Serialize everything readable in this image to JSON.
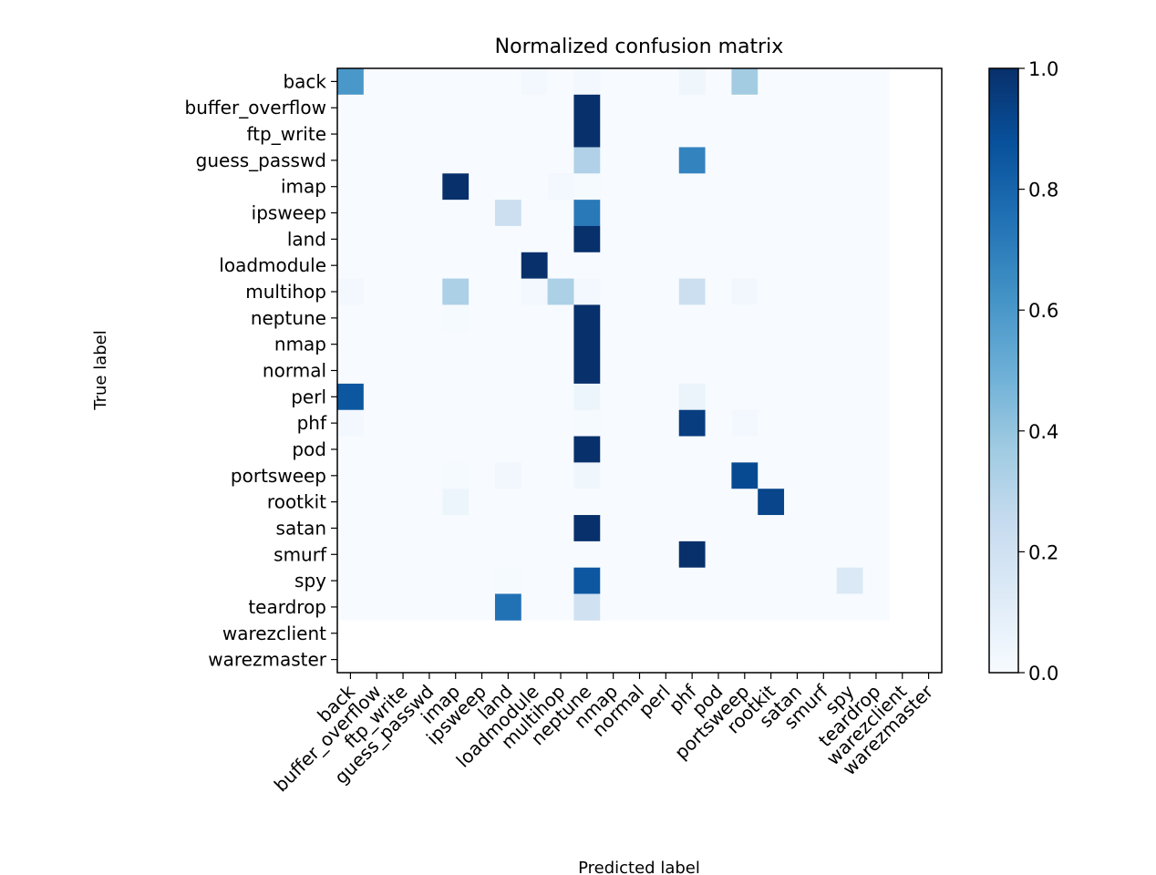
{
  "chart_data": {
    "type": "heatmap",
    "title": "Normalized confusion matrix",
    "xlabel": "Predicted label",
    "ylabel": "True label",
    "rows": [
      "back",
      "buffer_overflow",
      "ftp_write",
      "guess_passwd",
      "imap",
      "ipsweep",
      "land",
      "loadmodule",
      "multihop",
      "neptune",
      "nmap",
      "normal",
      "perl",
      "phf",
      "pod",
      "portsweep",
      "rootkit",
      "satan",
      "smurf",
      "spy",
      "teardrop",
      "warezclient",
      "warezmaster"
    ],
    "columns": [
      "back",
      "buffer_overflow",
      "ftp_write",
      "guess_passwd",
      "imap",
      "ipsweep",
      "land",
      "loadmodule",
      "multihop",
      "neptune",
      "nmap",
      "normal",
      "perl",
      "phf",
      "pod",
      "portsweep",
      "rootkit",
      "satan",
      "smurf",
      "spy",
      "teardrop",
      "warezclient",
      "warezmaster"
    ],
    "values": [
      [
        0.6,
        0,
        0,
        0,
        0,
        0,
        0,
        0.02,
        0,
        0.02,
        0,
        0,
        0,
        0.04,
        0,
        0.36,
        0,
        0,
        0,
        0,
        0,
        null,
        null
      ],
      [
        0,
        0,
        0,
        0,
        0,
        0,
        0,
        0,
        0,
        1,
        0,
        0,
        0,
        0,
        0,
        0,
        0,
        0,
        0,
        0,
        0,
        null,
        null
      ],
      [
        0,
        0,
        0,
        0,
        0,
        0,
        0,
        0,
        0,
        1,
        0,
        0,
        0,
        0,
        0,
        0,
        0,
        0,
        0,
        0,
        0,
        null,
        null
      ],
      [
        0,
        0,
        0,
        0,
        0,
        0,
        0,
        0,
        0,
        0.32,
        0,
        0,
        0,
        0.68,
        0,
        0,
        0,
        0,
        0,
        0,
        0,
        null,
        null
      ],
      [
        0,
        0,
        0,
        0,
        1,
        0,
        0,
        0,
        0.02,
        0.01,
        0,
        0,
        0,
        0,
        0,
        0,
        0,
        0,
        0,
        0,
        0,
        null,
        null
      ],
      [
        0,
        0,
        0,
        0,
        0,
        0,
        0.22,
        0,
        0,
        0.72,
        0,
        0,
        0,
        0,
        0,
        0,
        0,
        0,
        0,
        0,
        0,
        null,
        null
      ],
      [
        0,
        0,
        0,
        0,
        0,
        0,
        0,
        0,
        0,
        1,
        0,
        0,
        0,
        0,
        0,
        0,
        0,
        0,
        0,
        0,
        0,
        null,
        null
      ],
      [
        0,
        0,
        0,
        0,
        0,
        0,
        0,
        1,
        0,
        0,
        0,
        0,
        0,
        0,
        0,
        0,
        0,
        0,
        0,
        0,
        0,
        null,
        null
      ],
      [
        0.02,
        0,
        0,
        0,
        0.33,
        0,
        0,
        0.02,
        0.33,
        0.02,
        0,
        0,
        0,
        0.22,
        0,
        0.03,
        0,
        0,
        0,
        0,
        0,
        null,
        null
      ],
      [
        0,
        0,
        0,
        0,
        0.01,
        0,
        0,
        0,
        0,
        1,
        0,
        0,
        0,
        0,
        0,
        0,
        0,
        0,
        0,
        0,
        0,
        null,
        null
      ],
      [
        0,
        0,
        0,
        0,
        0,
        0,
        0,
        0,
        0,
        1,
        0,
        0,
        0,
        0,
        0,
        0,
        0,
        0,
        0,
        0,
        0,
        null,
        null
      ],
      [
        0,
        0,
        0,
        0,
        0,
        0,
        0,
        0,
        0,
        1,
        0,
        0,
        0,
        0,
        0,
        0,
        0,
        0,
        0,
        0,
        0,
        null,
        null
      ],
      [
        0.85,
        0,
        0,
        0,
        0,
        0,
        0,
        0,
        0,
        0.05,
        0,
        0,
        0,
        0.06,
        0,
        0,
        0,
        0,
        0,
        0,
        0,
        null,
        null
      ],
      [
        0.02,
        0,
        0,
        0,
        0,
        0,
        0,
        0,
        0,
        0.01,
        0,
        0,
        0,
        0.95,
        0,
        0.02,
        0,
        0,
        0,
        0,
        0,
        null,
        null
      ],
      [
        0,
        0,
        0,
        0,
        0,
        0,
        0,
        0,
        0,
        1,
        0,
        0,
        0,
        0,
        0,
        0,
        0,
        0,
        0,
        0,
        0,
        null,
        null
      ],
      [
        0,
        0,
        0,
        0,
        0.01,
        0,
        0.03,
        0,
        0,
        0.04,
        0,
        0,
        0,
        0,
        0,
        0.9,
        0,
        0,
        0,
        0,
        0,
        null,
        null
      ],
      [
        0,
        0,
        0,
        0,
        0.05,
        0,
        0,
        0,
        0,
        0,
        0,
        0,
        0,
        0,
        0,
        0,
        0.92,
        0,
        0,
        0,
        0,
        null,
        null
      ],
      [
        0,
        0,
        0,
        0,
        0,
        0,
        0,
        0,
        0,
        1,
        0,
        0,
        0,
        0,
        0,
        0,
        0,
        0,
        0,
        0,
        0,
        null,
        null
      ],
      [
        0,
        0,
        0,
        0,
        0,
        0,
        0,
        0,
        0,
        0,
        0,
        0,
        0,
        1,
        0,
        0,
        0,
        0,
        0,
        0,
        0,
        null,
        null
      ],
      [
        0,
        0,
        0,
        0,
        0,
        0,
        0.01,
        0,
        0,
        0.85,
        0,
        0,
        0,
        0,
        0,
        0,
        0,
        0,
        0,
        0.14,
        0,
        null,
        null
      ],
      [
        0,
        0,
        0,
        0,
        0,
        0,
        0.75,
        0,
        0,
        0.2,
        0,
        0,
        0,
        0,
        0,
        0,
        0,
        0,
        0,
        0,
        0,
        null,
        null
      ],
      [
        null,
        null,
        null,
        null,
        null,
        null,
        null,
        null,
        null,
        null,
        null,
        null,
        null,
        null,
        null,
        null,
        null,
        null,
        null,
        null,
        null,
        null,
        null
      ],
      [
        null,
        null,
        null,
        null,
        null,
        null,
        null,
        null,
        null,
        null,
        null,
        null,
        null,
        null,
        null,
        null,
        null,
        null,
        null,
        null,
        null,
        null,
        null
      ]
    ],
    "colormap": "Blues",
    "colorbar": {
      "min": 0,
      "max": 1,
      "ticks": [
        "0.0",
        "0.2",
        "0.4",
        "0.6",
        "0.8",
        "1.0"
      ]
    },
    "grid": false
  }
}
